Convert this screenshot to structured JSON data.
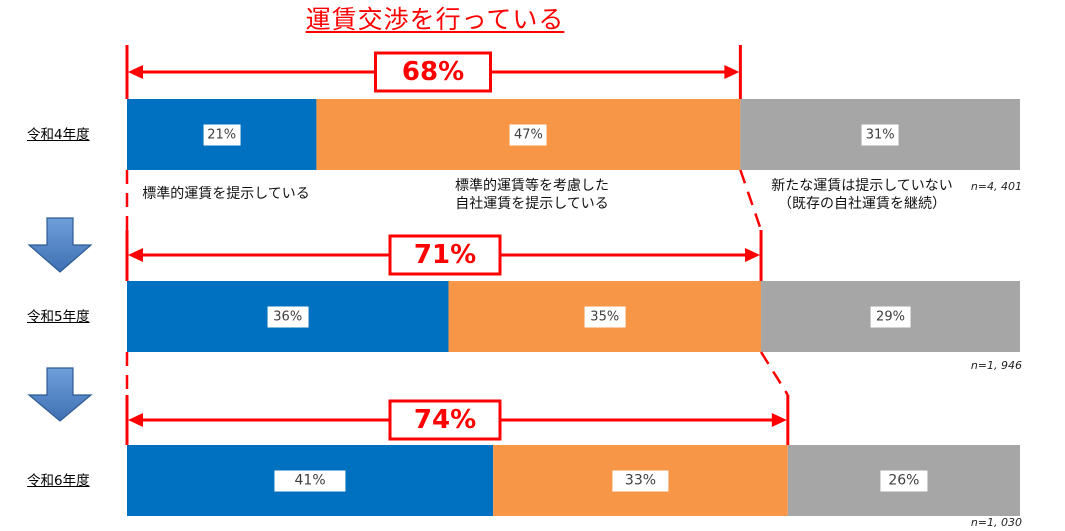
{
  "chart_data": {
    "type": "bar",
    "orientation": "horizontal",
    "stacked": true,
    "title": "運賃交渉を行っている",
    "categories": [
      "令和4年度",
      "令和5年度",
      "令和6年度"
    ],
    "series": [
      {
        "name": "標準的運賃を提示している",
        "values": [
          21,
          36,
          41
        ],
        "labels": [
          "21%",
          "36%",
          "41%"
        ],
        "color": "#0070C0"
      },
      {
        "name": "標準的運賃等を考慮した自社運賃を提示している",
        "values": [
          47,
          35,
          33
        ],
        "labels": [
          "47%",
          "35%",
          "33%"
        ],
        "color": "#F79646"
      },
      {
        "name": "新たな運賃は提示していない（既存の自社運賃を継続）",
        "values": [
          31,
          29,
          26
        ],
        "labels": [
          "31%",
          "29%",
          "26%"
        ],
        "color": "#A6A6A6"
      }
    ],
    "totals": {
      "values": [
        68,
        71,
        74
      ],
      "labels": [
        "68%",
        "71%",
        "74%"
      ],
      "color": "#FF0000"
    },
    "sample_sizes": [
      "n=4, 401",
      "n=1, 946",
      "n=1, 030"
    ],
    "legend_position": "below-first-bar",
    "grid": false
  },
  "icons": {
    "row_transition": "down-arrow-icon"
  }
}
